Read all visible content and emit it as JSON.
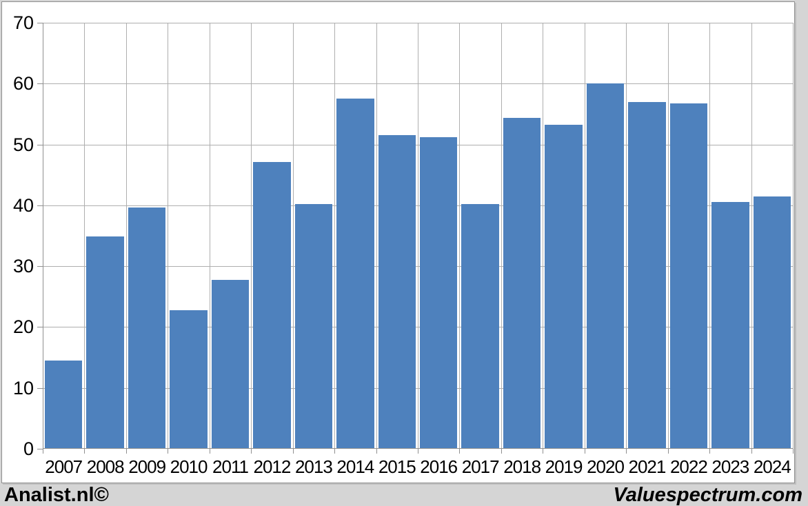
{
  "chart_data": {
    "type": "bar",
    "categories": [
      "2007",
      "2008",
      "2009",
      "2010",
      "2011",
      "2012",
      "2013",
      "2014",
      "2015",
      "2016",
      "2017",
      "2018",
      "2019",
      "2020",
      "2021",
      "2022",
      "2023",
      "2024"
    ],
    "values": [
      14.5,
      34.9,
      39.6,
      22.8,
      27.8,
      47.1,
      40.2,
      57.5,
      51.5,
      51.2,
      40.2,
      54.4,
      53.2,
      60.0,
      57.0,
      56.7,
      40.6,
      41.4
    ],
    "title": "",
    "xlabel": "",
    "ylabel": "",
    "ylim": [
      0,
      70
    ],
    "ytick_step": 10,
    "grid": true,
    "legend_position": "none"
  },
  "colors": {
    "bar_fill": "#4e81bd",
    "gridline": "#aeaeae",
    "axis": "#8f8f8f",
    "page_background": "#d5d5d5",
    "chart_background": "#ffffff",
    "text": "#000000"
  },
  "footer": {
    "left_text": "Analist.nl©",
    "right_text": "Valuespectrum.com"
  }
}
